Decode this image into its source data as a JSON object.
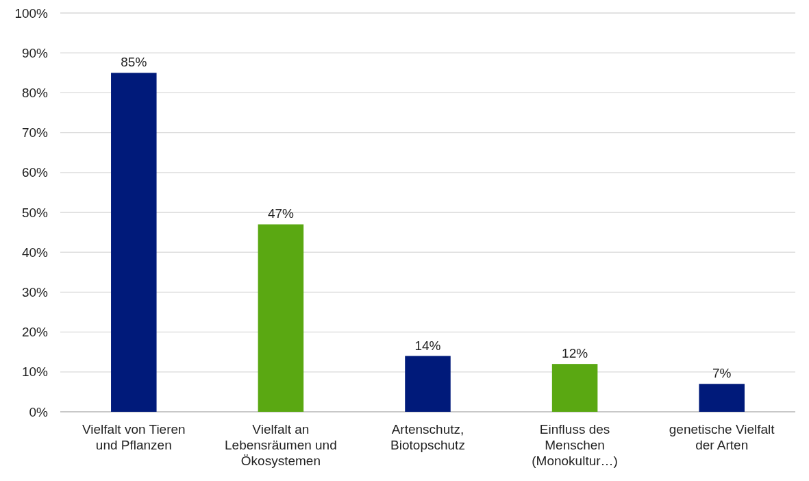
{
  "chart_data": {
    "type": "bar",
    "categories": [
      "Vielfalt von Tieren\nund Pflanzen",
      "Vielfalt an\nLebensräumen und\nÖkosystemen",
      "Artenschutz,\nBiotopschutz",
      "Einfluss des\nMenschen\n(Monokultur…)",
      "genetische Vielfalt\nder Arten"
    ],
    "values": [
      85,
      47,
      14,
      12,
      7
    ],
    "colors": [
      "#001a7a",
      "#5aa812",
      "#001a7a",
      "#5aa812",
      "#001a7a"
    ],
    "value_labels": [
      "85%",
      "47%",
      "14%",
      "12%",
      "7%"
    ],
    "ylim": [
      0,
      100
    ],
    "yticks": [
      {
        "value": 0,
        "label": "0%"
      },
      {
        "value": 10,
        "label": "10%"
      },
      {
        "value": 20,
        "label": "20%"
      },
      {
        "value": 30,
        "label": "30%"
      },
      {
        "value": 40,
        "label": "40%"
      },
      {
        "value": 50,
        "label": "50%"
      },
      {
        "value": 60,
        "label": "60%"
      },
      {
        "value": 70,
        "label": "70%"
      },
      {
        "value": 80,
        "label": "80%"
      },
      {
        "value": 90,
        "label": "90%"
      },
      {
        "value": 100,
        "label": "100%"
      }
    ],
    "grid": "y"
  }
}
